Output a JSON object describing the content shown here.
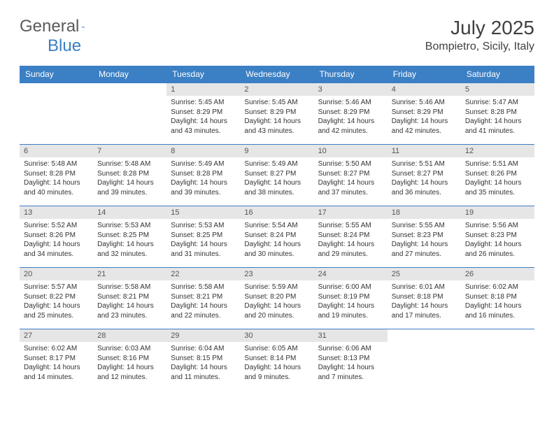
{
  "brand": {
    "word1": "General",
    "word2": "Blue"
  },
  "title": "July 2025",
  "location": "Bompietro, Sicily, Italy",
  "colors": {
    "accent": "#3b7fc4",
    "header_text": "#ffffff",
    "daynum_bg": "#e6e6e6",
    "text": "#333333"
  },
  "dayHeaders": [
    "Sunday",
    "Monday",
    "Tuesday",
    "Wednesday",
    "Thursday",
    "Friday",
    "Saturday"
  ],
  "weeks": [
    [
      {
        "n": "",
        "sr": "",
        "ss": "",
        "dl": ""
      },
      {
        "n": "",
        "sr": "",
        "ss": "",
        "dl": ""
      },
      {
        "n": "1",
        "sr": "5:45 AM",
        "ss": "8:29 PM",
        "dl": "14 hours and 43 minutes."
      },
      {
        "n": "2",
        "sr": "5:45 AM",
        "ss": "8:29 PM",
        "dl": "14 hours and 43 minutes."
      },
      {
        "n": "3",
        "sr": "5:46 AM",
        "ss": "8:29 PM",
        "dl": "14 hours and 42 minutes."
      },
      {
        "n": "4",
        "sr": "5:46 AM",
        "ss": "8:29 PM",
        "dl": "14 hours and 42 minutes."
      },
      {
        "n": "5",
        "sr": "5:47 AM",
        "ss": "8:28 PM",
        "dl": "14 hours and 41 minutes."
      }
    ],
    [
      {
        "n": "6",
        "sr": "5:48 AM",
        "ss": "8:28 PM",
        "dl": "14 hours and 40 minutes."
      },
      {
        "n": "7",
        "sr": "5:48 AM",
        "ss": "8:28 PM",
        "dl": "14 hours and 39 minutes."
      },
      {
        "n": "8",
        "sr": "5:49 AM",
        "ss": "8:28 PM",
        "dl": "14 hours and 39 minutes."
      },
      {
        "n": "9",
        "sr": "5:49 AM",
        "ss": "8:27 PM",
        "dl": "14 hours and 38 minutes."
      },
      {
        "n": "10",
        "sr": "5:50 AM",
        "ss": "8:27 PM",
        "dl": "14 hours and 37 minutes."
      },
      {
        "n": "11",
        "sr": "5:51 AM",
        "ss": "8:27 PM",
        "dl": "14 hours and 36 minutes."
      },
      {
        "n": "12",
        "sr": "5:51 AM",
        "ss": "8:26 PM",
        "dl": "14 hours and 35 minutes."
      }
    ],
    [
      {
        "n": "13",
        "sr": "5:52 AM",
        "ss": "8:26 PM",
        "dl": "14 hours and 34 minutes."
      },
      {
        "n": "14",
        "sr": "5:53 AM",
        "ss": "8:25 PM",
        "dl": "14 hours and 32 minutes."
      },
      {
        "n": "15",
        "sr": "5:53 AM",
        "ss": "8:25 PM",
        "dl": "14 hours and 31 minutes."
      },
      {
        "n": "16",
        "sr": "5:54 AM",
        "ss": "8:24 PM",
        "dl": "14 hours and 30 minutes."
      },
      {
        "n": "17",
        "sr": "5:55 AM",
        "ss": "8:24 PM",
        "dl": "14 hours and 29 minutes."
      },
      {
        "n": "18",
        "sr": "5:55 AM",
        "ss": "8:23 PM",
        "dl": "14 hours and 27 minutes."
      },
      {
        "n": "19",
        "sr": "5:56 AM",
        "ss": "8:23 PM",
        "dl": "14 hours and 26 minutes."
      }
    ],
    [
      {
        "n": "20",
        "sr": "5:57 AM",
        "ss": "8:22 PM",
        "dl": "14 hours and 25 minutes."
      },
      {
        "n": "21",
        "sr": "5:58 AM",
        "ss": "8:21 PM",
        "dl": "14 hours and 23 minutes."
      },
      {
        "n": "22",
        "sr": "5:58 AM",
        "ss": "8:21 PM",
        "dl": "14 hours and 22 minutes."
      },
      {
        "n": "23",
        "sr": "5:59 AM",
        "ss": "8:20 PM",
        "dl": "14 hours and 20 minutes."
      },
      {
        "n": "24",
        "sr": "6:00 AM",
        "ss": "8:19 PM",
        "dl": "14 hours and 19 minutes."
      },
      {
        "n": "25",
        "sr": "6:01 AM",
        "ss": "8:18 PM",
        "dl": "14 hours and 17 minutes."
      },
      {
        "n": "26",
        "sr": "6:02 AM",
        "ss": "8:18 PM",
        "dl": "14 hours and 16 minutes."
      }
    ],
    [
      {
        "n": "27",
        "sr": "6:02 AM",
        "ss": "8:17 PM",
        "dl": "14 hours and 14 minutes."
      },
      {
        "n": "28",
        "sr": "6:03 AM",
        "ss": "8:16 PM",
        "dl": "14 hours and 12 minutes."
      },
      {
        "n": "29",
        "sr": "6:04 AM",
        "ss": "8:15 PM",
        "dl": "14 hours and 11 minutes."
      },
      {
        "n": "30",
        "sr": "6:05 AM",
        "ss": "8:14 PM",
        "dl": "14 hours and 9 minutes."
      },
      {
        "n": "31",
        "sr": "6:06 AM",
        "ss": "8:13 PM",
        "dl": "14 hours and 7 minutes."
      },
      {
        "n": "",
        "sr": "",
        "ss": "",
        "dl": ""
      },
      {
        "n": "",
        "sr": "",
        "ss": "",
        "dl": ""
      }
    ]
  ],
  "labels": {
    "sunrise": "Sunrise:",
    "sunset": "Sunset:",
    "daylight": "Daylight:"
  }
}
